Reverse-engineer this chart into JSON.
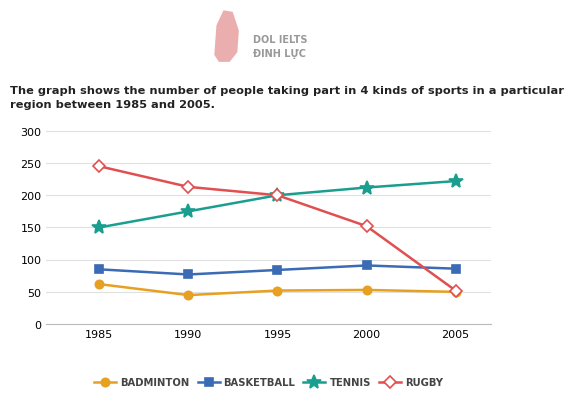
{
  "title": "The graph shows the number of people taking part in 4 kinds of sports in a particular\nregion between 1985 and 2005.",
  "years": [
    1985,
    1990,
    1995,
    2000,
    2005
  ],
  "series": {
    "BADMINTON": {
      "values": [
        62,
        45,
        52,
        53,
        50
      ],
      "color": "#E8A020",
      "marker": "o",
      "marker_face": "#E8A020",
      "marker_edge": "#E8A020",
      "linewidth": 1.8,
      "markersize": 6
    },
    "BASKETBALL": {
      "values": [
        85,
        77,
        84,
        91,
        86
      ],
      "color": "#3B6BB5",
      "marker": "s",
      "marker_face": "#3B6BB5",
      "marker_edge": "#3B6BB5",
      "linewidth": 1.8,
      "markersize": 6
    },
    "TENNIS": {
      "values": [
        150,
        175,
        200,
        212,
        222
      ],
      "color": "#1A9E8F",
      "marker": "*",
      "marker_face": "#1A9E8F",
      "marker_edge": "#1A9E8F",
      "linewidth": 1.8,
      "markersize": 10
    },
    "RUGBY": {
      "values": [
        245,
        213,
        200,
        152,
        52
      ],
      "color": "#E05050",
      "marker": "D",
      "marker_face": "white",
      "marker_edge": "#E05050",
      "linewidth": 1.8,
      "markersize": 6
    }
  },
  "ylim": [
    0,
    310
  ],
  "yticks": [
    0,
    50,
    100,
    150,
    200,
    250,
    300
  ],
  "xlim": [
    1982,
    2007
  ],
  "background_color": "#ffffff",
  "grid_color": "#e0e0e0",
  "title_fontsize": 8.2,
  "legend_fontsize": 7.2,
  "tick_fontsize": 8,
  "logo_text": "DOL IELTS\nĐINH LỰC",
  "logo_color": "#aaaaaa",
  "leaf_color": "#E8A0A0"
}
